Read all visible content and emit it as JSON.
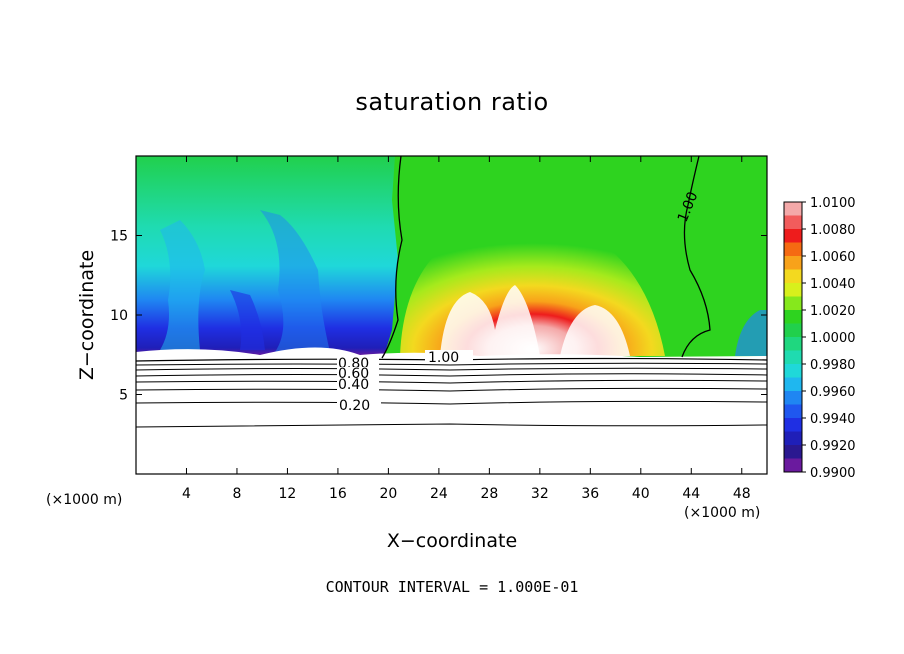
{
  "chart_data": {
    "type": "heatmap",
    "title": "saturation ratio",
    "xlabel": "X−coordinate",
    "ylabel": "Z−coordinate",
    "x_unit_label_left": "(×1000 m)",
    "x_unit_label_right": "(×1000 m)",
    "xlim": [
      0,
      50
    ],
    "ylim": [
      0,
      20
    ],
    "x_ticks": [
      4,
      8,
      12,
      16,
      20,
      24,
      28,
      32,
      36,
      40,
      44,
      48
    ],
    "y_ticks": [
      5,
      10,
      15
    ],
    "colorbar": {
      "levels": [
        "1.0100",
        "1.0080",
        "1.0060",
        "1.0040",
        "1.0020",
        "1.0000",
        "0.9980",
        "0.9960",
        "0.9940",
        "0.9920",
        "0.9900"
      ],
      "colors": [
        "#f4a9a9",
        "#f25c5c",
        "#ee1c1c",
        "#f56a12",
        "#f8a21a",
        "#f3d91f",
        "#d8f01c",
        "#86e81c",
        "#2ed31f",
        "#21d04c",
        "#1fd77f",
        "#1fdbb0",
        "#1fd8d9",
        "#1fb7ef",
        "#1f86f2",
        "#1f57ef",
        "#1f2fe3",
        "#1f1fb8",
        "#2a1890",
        "#6a1a9e"
      ],
      "range": [
        0.99,
        1.01
      ]
    },
    "contour_labels": [
      "1.00",
      "1.00",
      "0.80",
      "0.60",
      "0.40",
      "0.20"
    ],
    "contour_interval_text": "CONTOUR INTERVAL = 1.000E-01"
  }
}
